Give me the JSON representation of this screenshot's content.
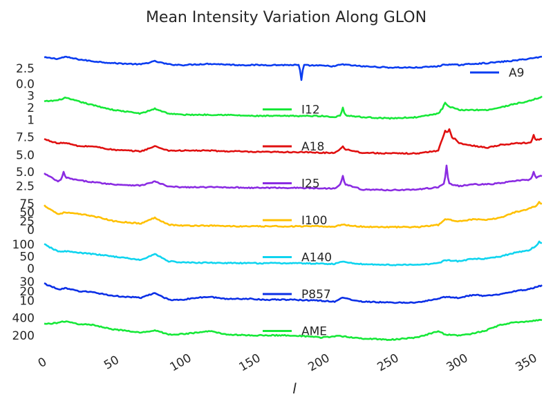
{
  "chart_data": {
    "type": "line",
    "title": "Mean Intensity Variation Along GLON",
    "xlabel": "l",
    "xlim": [
      0,
      360
    ],
    "x_ticks": [
      "0",
      "50",
      "100",
      "150",
      "200",
      "250",
      "300",
      "350"
    ],
    "x_tick_values": [
      0,
      50,
      100,
      150,
      200,
      250,
      300,
      350
    ],
    "grid": false,
    "x_profile": [
      0,
      10,
      15,
      25,
      35,
      50,
      70,
      80,
      90,
      100,
      110,
      120,
      130,
      140,
      150,
      160,
      170,
      180,
      200,
      210,
      215,
      230,
      250,
      270,
      285,
      290,
      300,
      310,
      320,
      330,
      340,
      350,
      360
    ],
    "panels": [
      {
        "name": "A9",
        "color": "#0a3cf0",
        "legend_pos": "right",
        "ylim": [
          0,
          5
        ],
        "y_ticks": [
          "2.5",
          "0.0"
        ],
        "y_tick_values": [
          2.5,
          0.0
        ],
        "values": [
          4.2,
          4.0,
          4.3,
          3.9,
          3.6,
          3.3,
          3.1,
          3.6,
          3.1,
          3.0,
          3.1,
          3.2,
          3.1,
          3.0,
          3.0,
          3.0,
          3.0,
          3.0,
          2.9,
          2.8,
          3.1,
          2.8,
          2.6,
          2.6,
          2.8,
          3.1,
          3.0,
          3.2,
          3.3,
          3.5,
          3.7,
          4.0,
          4.3
        ],
        "events": [
          {
            "x": 186,
            "y": 0.6
          }
        ]
      },
      {
        "name": "I12",
        "color": "#16e838",
        "legend_pos": "center",
        "ylim": [
          0.9,
          3.5
        ],
        "y_ticks": [
          "3",
          "2",
          "1"
        ],
        "y_tick_values": [
          3,
          2,
          1
        ],
        "values": [
          2.5,
          2.6,
          2.8,
          2.5,
          2.2,
          1.8,
          1.5,
          1.9,
          1.5,
          1.4,
          1.4,
          1.4,
          1.4,
          1.35,
          1.3,
          1.3,
          1.3,
          1.3,
          1.3,
          1.2,
          1.4,
          1.2,
          1.1,
          1.2,
          1.5,
          2.2,
          1.8,
          1.8,
          1.8,
          2.0,
          2.3,
          2.5,
          2.9
        ],
        "events": [
          {
            "x": 216,
            "y": 2.0
          },
          {
            "x": 290,
            "y": 2.4
          },
          {
            "x": 294,
            "y": 2.0
          }
        ]
      },
      {
        "name": "A18",
        "color": "#e01010",
        "legend_pos": "center",
        "ylim": [
          4.6,
          9.0
        ],
        "y_ticks": [
          "7.5",
          "5.0"
        ],
        "y_tick_values": [
          7.5,
          5.0
        ],
        "values": [
          7.2,
          6.6,
          6.7,
          6.2,
          6.2,
          5.7,
          5.5,
          6.2,
          5.6,
          5.6,
          5.6,
          5.6,
          5.5,
          5.5,
          5.4,
          5.4,
          5.4,
          5.4,
          5.3,
          5.3,
          5.9,
          5.3,
          5.2,
          5.2,
          5.6,
          8.4,
          6.6,
          6.3,
          6.0,
          6.4,
          6.6,
          6.7,
          7.3
        ],
        "events": [
          {
            "x": 216,
            "y": 6.2
          },
          {
            "x": 293,
            "y": 8.6
          },
          {
            "x": 297,
            "y": 7.3
          },
          {
            "x": 354,
            "y": 7.8
          }
        ]
      },
      {
        "name": "I25",
        "color": "#8a2be2",
        "legend_pos": "center",
        "ylim": [
          1.0,
          6.5
        ],
        "y_ticks": [
          "5.0",
          "2.5"
        ],
        "y_tick_values": [
          5.0,
          2.5
        ],
        "values": [
          4.7,
          3.3,
          4.0,
          3.5,
          3.2,
          2.8,
          2.6,
          3.3,
          2.4,
          2.3,
          2.3,
          2.3,
          2.3,
          2.25,
          2.2,
          2.2,
          2.2,
          2.2,
          2.1,
          2.1,
          3.0,
          1.9,
          1.8,
          1.9,
          2.3,
          3.1,
          2.5,
          2.8,
          2.8,
          3.0,
          3.4,
          3.6,
          4.3
        ],
        "events": [
          {
            "x": 14,
            "y": 5.0
          },
          {
            "x": 216,
            "y": 4.3
          },
          {
            "x": 291,
            "y": 6.1
          },
          {
            "x": 354,
            "y": 5.0
          }
        ]
      },
      {
        "name": "I100",
        "color": "#ffc000",
        "legend_pos": "center",
        "ylim": [
          -5,
          85
        ],
        "y_ticks": [
          "75",
          "50",
          "25",
          "0"
        ],
        "y_tick_values": [
          75,
          50,
          25,
          0
        ],
        "values": [
          70,
          45,
          50,
          45,
          40,
          25,
          18,
          35,
          15,
          12,
          12,
          12,
          11,
          10,
          10,
          10,
          10,
          10,
          10,
          9,
          15,
          9,
          8,
          8,
          14,
          30,
          25,
          30,
          28,
          35,
          50,
          60,
          75
        ],
        "events": [
          {
            "x": 358,
            "y": 80
          }
        ]
      },
      {
        "name": "A140",
        "color": "#0fd4ef",
        "legend_pos": "center",
        "ylim": [
          0,
          130
        ],
        "y_ticks": [
          "100",
          "50",
          "0"
        ],
        "y_tick_values": [
          100,
          50,
          0
        ],
        "values": [
          100,
          70,
          72,
          65,
          60,
          50,
          35,
          60,
          30,
          25,
          24,
          24,
          23,
          22,
          22,
          22,
          22,
          22,
          20,
          19,
          28,
          18,
          15,
          15,
          22,
          35,
          30,
          40,
          40,
          50,
          65,
          75,
          105
        ],
        "events": [
          {
            "x": 358,
            "y": 112
          }
        ]
      },
      {
        "name": "P857",
        "color": "#0b2fe6",
        "legend_pos": "center",
        "ylim": [
          5,
          38
        ],
        "y_ticks": [
          "30",
          "20",
          "10"
        ],
        "y_tick_values": [
          30,
          20,
          10
        ],
        "values": [
          28,
          22,
          23,
          20,
          19,
          15,
          13,
          18,
          11,
          11,
          13,
          14,
          12,
          12,
          12,
          11,
          11,
          11,
          10,
          9,
          13,
          9,
          8,
          8,
          12,
          14,
          13,
          16,
          15,
          17,
          20,
          22,
          26
        ],
        "events": []
      },
      {
        "name": "AME",
        "color": "#16e838",
        "legend_pos": "center",
        "ylim": [
          120,
          480
        ],
        "y_ticks": [
          "400",
          "200"
        ],
        "y_tick_values": [
          400,
          200
        ],
        "values": [
          330,
          345,
          360,
          330,
          320,
          270,
          230,
          260,
          210,
          215,
          230,
          250,
          215,
          205,
          200,
          200,
          200,
          200,
          175,
          190,
          190,
          165,
          150,
          175,
          250,
          210,
          200,
          220,
          260,
          320,
          350,
          360,
          380
        ],
        "events": []
      }
    ]
  }
}
